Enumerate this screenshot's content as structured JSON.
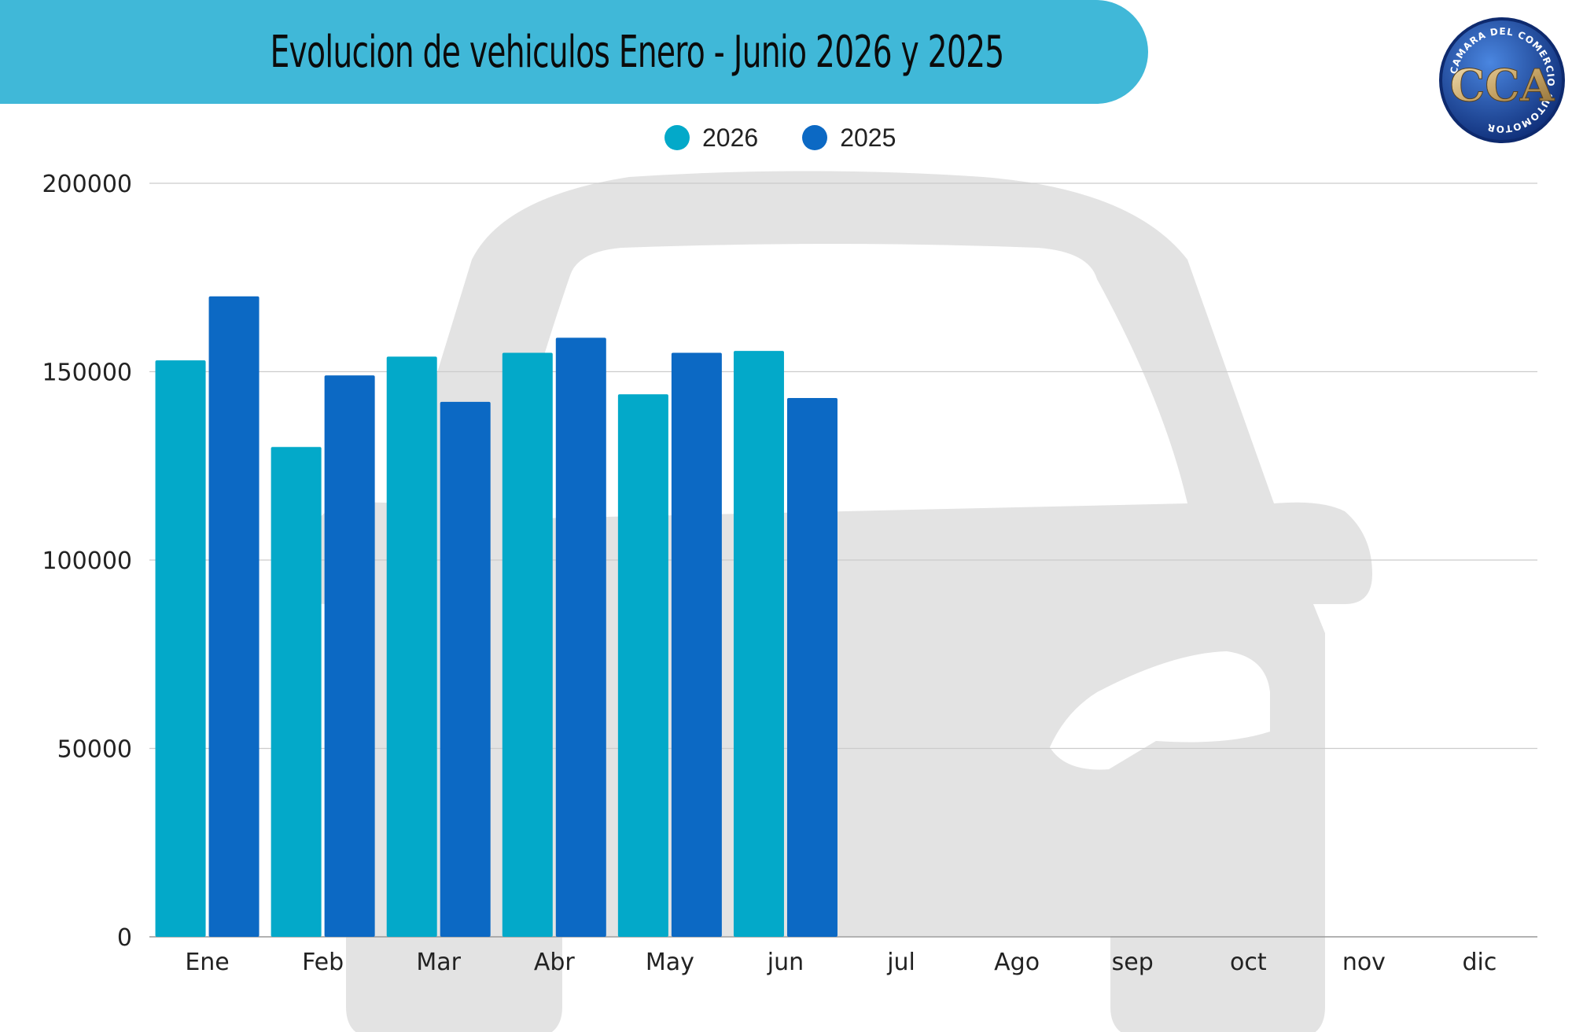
{
  "title": "Evolucion de vehiculos Enero - Junio 2026 y 2025",
  "colors": {
    "banner": "#40b8d8",
    "series_2026": "#03a9c9",
    "series_2025": "#0c69c4",
    "grid": "#cccccc",
    "watermark": "#e3e3e3",
    "logo_outer": "#1b3f93",
    "logo_inner": "#2e62c4"
  },
  "logo": {
    "ring_text": "CAMARA DEL COMERCIO AUTOMOTOR",
    "monogram": "CCA"
  },
  "watermark": {
    "icon": "car-front-icon"
  },
  "chart_data": {
    "type": "bar",
    "categories": [
      "Ene",
      "Feb",
      "Mar",
      "Abr",
      "May",
      "jun",
      "jul",
      "Ago",
      "sep",
      "oct",
      "nov",
      "dic"
    ],
    "series": [
      {
        "name": "2026",
        "values": [
          153000,
          130000,
          154000,
          155000,
          144000,
          155500,
          null,
          null,
          null,
          null,
          null,
          null
        ]
      },
      {
        "name": "2025",
        "values": [
          170000,
          149000,
          142000,
          159000,
          155000,
          143000,
          null,
          null,
          null,
          null,
          null,
          null
        ]
      }
    ],
    "title": "Evolucion de vehiculos Enero - Junio 2026 y 2025",
    "xlabel": "",
    "ylabel": "",
    "ylim": [
      0,
      200000
    ],
    "yticks": [
      "0",
      "50000",
      "100000",
      "150000",
      "200000"
    ],
    "grid": true,
    "legend_position": "top-center"
  }
}
